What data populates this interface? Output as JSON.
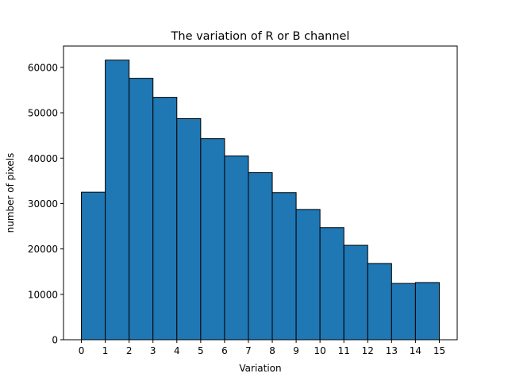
{
  "chart_data": {
    "type": "bar",
    "title": "The variation of R or B channel",
    "xlabel": "Variation",
    "ylabel": "number of pixels",
    "bin_edges": [
      0,
      1,
      2,
      3,
      4,
      5,
      6,
      7,
      8,
      9,
      10,
      11,
      12,
      13,
      14,
      15
    ],
    "values": [
      32500,
      61600,
      57600,
      53400,
      48700,
      44300,
      40500,
      36800,
      32400,
      28700,
      24700,
      20800,
      16800,
      12400,
      12600
    ],
    "xlim": [
      -0.75,
      15.75
    ],
    "ylim": [
      0,
      64700
    ],
    "xticks": [
      "0",
      "1",
      "2",
      "3",
      "4",
      "5",
      "6",
      "7",
      "8",
      "9",
      "10",
      "11",
      "12",
      "13",
      "14",
      "15"
    ],
    "yticks": [
      0,
      10000,
      20000,
      30000,
      40000,
      50000,
      60000
    ],
    "ytick_labels": [
      "0",
      "10000",
      "20000",
      "30000",
      "40000",
      "50000",
      "60000"
    ],
    "bar_color": "#1f77b4",
    "edge_color": "#000000",
    "grid": false,
    "legend": "none"
  }
}
